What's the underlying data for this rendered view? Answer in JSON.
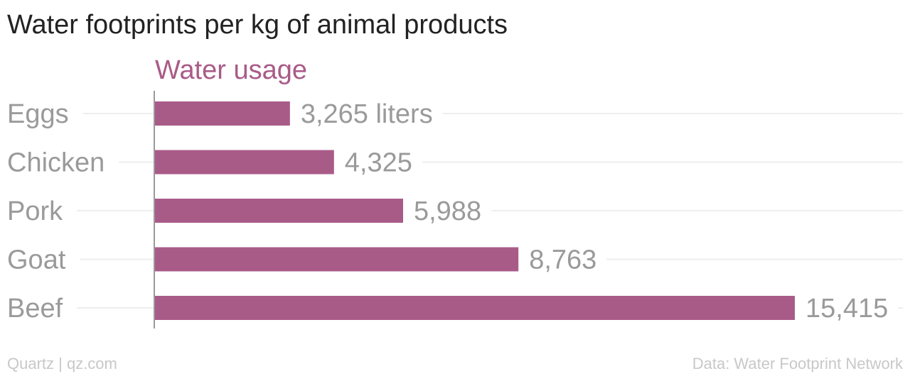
{
  "footer": {
    "credit": "Quartz | qz.com",
    "source": "Data: Water Footprint Network"
  },
  "chart_data": {
    "type": "bar",
    "orientation": "horizontal",
    "title": "Water footprints per kg of animal products",
    "categories": [
      "Eggs",
      "Chicken",
      "Pork",
      "Goat",
      "Beef"
    ],
    "series": [
      {
        "name": "Water usage",
        "values": [
          3265,
          4325,
          5988,
          8763,
          15415
        ],
        "color": "#a95b88"
      }
    ],
    "value_labels": [
      "3,265 liters",
      "4,325",
      "5,988",
      "8,763",
      "15,415"
    ],
    "xlim": [
      0,
      15415
    ],
    "grid": true,
    "colors": {
      "bar": "#a95b88",
      "label": "#9a9a9a",
      "grid": "#eeeeee",
      "axis": "#999999"
    }
  }
}
